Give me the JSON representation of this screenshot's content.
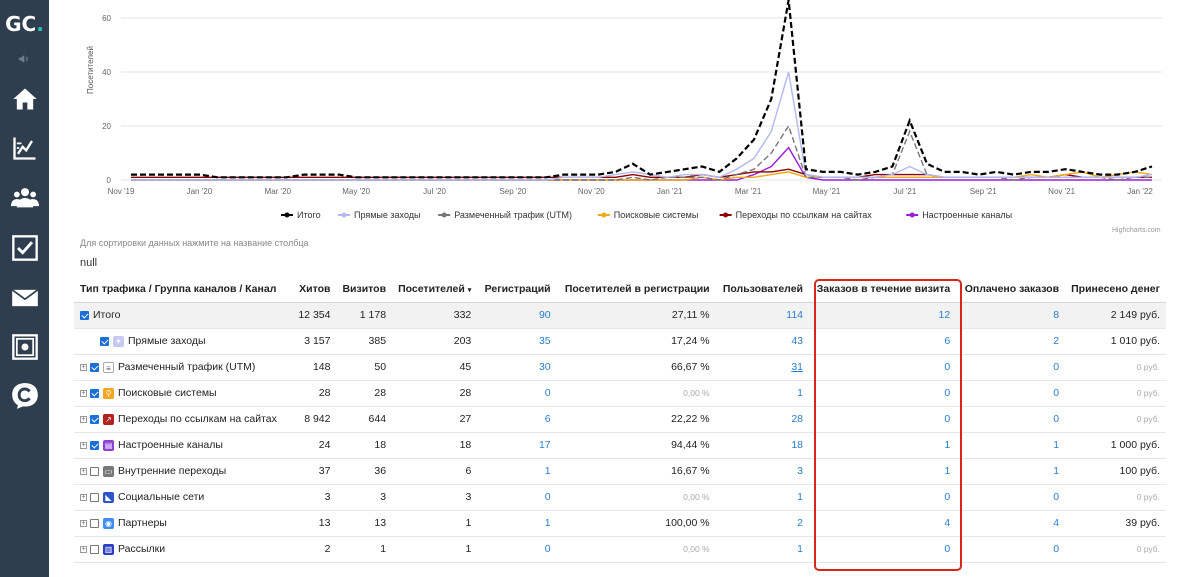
{
  "sidebar": {
    "logo_main": "GC",
    "logo_dot": ".",
    "items": [
      {
        "icon": "megaphone-icon"
      },
      {
        "icon": "home-icon"
      },
      {
        "icon": "chart-icon"
      },
      {
        "icon": "users-icon"
      },
      {
        "icon": "checkbox-icon"
      },
      {
        "icon": "mail-icon"
      },
      {
        "icon": "safe-icon"
      },
      {
        "icon": "getcourse-icon"
      }
    ]
  },
  "chart_data": {
    "type": "line",
    "title": "",
    "ylabel": "Посетителей",
    "xlabel": "",
    "ylim": [
      0,
      60
    ],
    "yticks": [
      "0",
      "20",
      "40",
      "60"
    ],
    "xticks": [
      "Nov '19",
      "Jan '20",
      "Mar '20",
      "May '20",
      "Jul '20",
      "Sep '20",
      "Nov '20",
      "Jan '21",
      "Mar '21",
      "May '21",
      "Jul '21",
      "Sep '21",
      "Nov '21",
      "Jan '22"
    ],
    "grid": true,
    "legend_position": "bottom",
    "credit": "Highcharts.com",
    "series": [
      {
        "name": "Итого",
        "color": "#000000",
        "dash": true,
        "values": [
          2,
          2,
          2,
          2,
          2,
          1,
          1,
          1,
          1,
          1,
          2,
          2,
          2,
          1,
          1,
          1,
          1,
          1,
          1,
          1,
          1,
          1,
          1,
          1,
          1,
          2,
          2,
          2,
          3,
          6,
          2,
          3,
          4,
          5,
          3,
          8,
          15,
          30,
          68,
          4,
          3,
          3,
          2,
          3,
          5,
          22,
          6,
          3,
          3,
          2,
          3,
          2,
          3,
          3,
          4,
          3,
          2,
          2,
          3,
          5
        ]
      },
      {
        "name": "Прямые заходы",
        "color": "#b3b8f0",
        "dash": false,
        "values": [
          0,
          0,
          0,
          0,
          0,
          0,
          0,
          0,
          0,
          0,
          0,
          0,
          0,
          0,
          0,
          0,
          0,
          0,
          0,
          0,
          0,
          0,
          0,
          0,
          0,
          1,
          1,
          1,
          2,
          3,
          2,
          1,
          2,
          2,
          1,
          4,
          8,
          18,
          40,
          2,
          1,
          1,
          1,
          1,
          2,
          5,
          2,
          1,
          1,
          1,
          1,
          1,
          1,
          1,
          1,
          1,
          1,
          1,
          1,
          2
        ]
      },
      {
        "name": "Размеченный трафик (UTM)",
        "color": "#777777",
        "dash": true,
        "values": [
          0,
          0,
          0,
          0,
          0,
          0,
          0,
          0,
          0,
          0,
          0,
          0,
          0,
          0,
          0,
          0,
          0,
          0,
          0,
          0,
          0,
          0,
          0,
          0,
          0,
          0,
          0,
          0,
          0,
          1,
          0,
          1,
          1,
          1,
          0,
          2,
          4,
          10,
          20,
          1,
          1,
          1,
          0,
          1,
          2,
          18,
          2,
          1,
          1,
          1,
          1,
          0,
          1,
          1,
          1,
          1,
          1,
          0,
          1,
          1
        ]
      },
      {
        "name": "Поисковые системы",
        "color": "#f0a91c",
        "dash": false,
        "values": [
          0,
          0,
          0,
          0,
          0,
          0,
          0,
          0,
          0,
          0,
          0,
          0,
          0,
          0,
          0,
          0,
          0,
          0,
          0,
          0,
          0,
          0,
          0,
          0,
          0,
          0,
          0,
          0,
          0,
          0,
          0,
          0,
          0,
          1,
          0,
          1,
          1,
          2,
          3,
          1,
          1,
          1,
          1,
          1,
          1,
          1,
          1,
          1,
          1,
          1,
          1,
          1,
          2,
          1,
          2,
          3,
          1,
          2,
          3,
          2
        ]
      },
      {
        "name": "Переходы по ссылкам на сайтах",
        "color": "#8b0000",
        "dash": false,
        "values": [
          1,
          1,
          1,
          1,
          1,
          1,
          1,
          1,
          1,
          1,
          1,
          1,
          1,
          1,
          1,
          1,
          1,
          1,
          1,
          1,
          1,
          1,
          1,
          1,
          1,
          1,
          1,
          1,
          1,
          2,
          1,
          1,
          1,
          2,
          1,
          2,
          3,
          3,
          4,
          2,
          1,
          1,
          1,
          2,
          2,
          2,
          2,
          1,
          1,
          1,
          1,
          1,
          1,
          1,
          2,
          1,
          1,
          1,
          1,
          1
        ]
      },
      {
        "name": "Настроенные каналы",
        "color": "#9b1fd6",
        "dash": false,
        "values": [
          0,
          0,
          0,
          0,
          0,
          0,
          0,
          0,
          0,
          0,
          0,
          0,
          0,
          0,
          0,
          0,
          0,
          0,
          0,
          0,
          0,
          0,
          0,
          0,
          0,
          0,
          0,
          0,
          0,
          0,
          0,
          0,
          0,
          0,
          0,
          0,
          2,
          5,
          12,
          1,
          0,
          0,
          0,
          0,
          0,
          0,
          0,
          0,
          0,
          0,
          0,
          0,
          0,
          0,
          0,
          0,
          0,
          0,
          0,
          0
        ]
      }
    ]
  },
  "sort_hint": "Для сортировки данных нажмите на название столбца",
  "null_text": "null",
  "table": {
    "headers": [
      "Тип трафика / Группа каналов / Канал",
      "Хитов",
      "Визитов",
      "Посетителей",
      "Регистраций",
      "Посетителей в регистрации",
      "Пользователей",
      "Заказов в течение визита",
      "Оплачено заказов",
      "Принесено денег"
    ],
    "sort_indicator": "▾",
    "rows": [
      {
        "name": "Итого",
        "expand": false,
        "checked": true,
        "icon": "none",
        "color": "",
        "cells": [
          "12 354",
          "1 178",
          "332",
          "90",
          "27,11 %",
          "114",
          "12",
          "8",
          "2 149 руб."
        ]
      },
      {
        "name": "Прямые заходы",
        "expand": false,
        "checked": true,
        "icon": "direct-icon",
        "color": "#c7c9f5",
        "cells": [
          "3 157",
          "385",
          "203",
          "35",
          "17,24 %",
          "43",
          "6",
          "2",
          "1 010 руб."
        ]
      },
      {
        "name": "Размеченный трафик (UTM)",
        "expand": true,
        "checked": true,
        "icon": "list-icon",
        "color": "#ffffff",
        "cells": [
          "148",
          "50",
          "45",
          "30",
          "66,67 %",
          "31",
          "0",
          "0",
          "0 руб."
        ]
      },
      {
        "name": "Поисковые системы",
        "expand": true,
        "checked": true,
        "icon": "search-icon",
        "color": "#f5a623",
        "cells": [
          "28",
          "28",
          "28",
          "0",
          "0,00 %",
          "1",
          "0",
          "0",
          "0 руб."
        ]
      },
      {
        "name": "Переходы по ссылкам на сайтах",
        "expand": true,
        "checked": true,
        "icon": "link-icon",
        "color": "#b0231f",
        "cells": [
          "8 942",
          "644",
          "27",
          "6",
          "22,22 %",
          "28",
          "0",
          "0",
          "0 руб."
        ]
      },
      {
        "name": "Настроенные каналы",
        "expand": true,
        "checked": true,
        "icon": "channel-icon",
        "color": "#8e3fd6",
        "cells": [
          "24",
          "18",
          "18",
          "17",
          "94,44 %",
          "18",
          "1",
          "1",
          "1 000 руб."
        ]
      },
      {
        "name": "Внутренние переходы",
        "expand": true,
        "checked": false,
        "icon": "internal-icon",
        "color": "#777777",
        "cells": [
          "37",
          "36",
          "6",
          "1",
          "16,67 %",
          "3",
          "1",
          "1",
          "100 руб."
        ]
      },
      {
        "name": "Социальные сети",
        "expand": true,
        "checked": false,
        "icon": "social-icon",
        "color": "#2d55c9",
        "cells": [
          "3",
          "3",
          "3",
          "0",
          "0,00 %",
          "1",
          "0",
          "0",
          "0 руб."
        ]
      },
      {
        "name": "Партнеры",
        "expand": true,
        "checked": false,
        "icon": "partner-icon",
        "color": "#3e8ef7",
        "cells": [
          "13",
          "13",
          "1",
          "1",
          "100,00 %",
          "2",
          "4",
          "4",
          "39 руб."
        ]
      },
      {
        "name": "Рассылки",
        "expand": true,
        "checked": false,
        "icon": "mailing-icon",
        "color": "#2a3fc2",
        "cells": [
          "2",
          "1",
          "1",
          "0",
          "0,00 %",
          "1",
          "0",
          "0",
          "0 руб."
        ]
      }
    ]
  },
  "colors": {
    "sidebar": "#2f3e4e",
    "link": "#2a7fd0",
    "highlight": "#d9261c",
    "logo_accent": "#27c3b8"
  }
}
